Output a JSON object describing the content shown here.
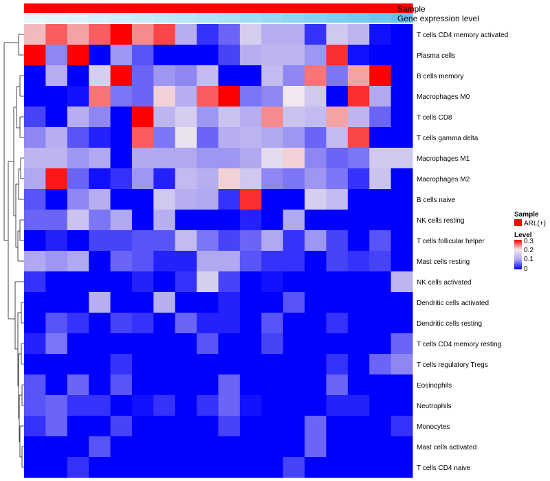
{
  "chart_data": {
    "type": "heatmap",
    "row_labels": [
      "T cells CD4 memory activated",
      "Plasma cells",
      "B cells memory",
      "Macrophages M0",
      "T cells CD8",
      "T cells gamma delta",
      "Macrophages M1",
      "Macrophages M2",
      "B cells naive",
      "NK cells resting",
      "T cells follicular helper",
      "Mast cells resting",
      "NK cells activated",
      "Dendritic cells activated",
      "Dendritic cells resting",
      "T cells CD4 memory resting",
      "T cells regulatory  Tregs",
      "Eosinophils",
      "Neutrophils",
      "Monocytes",
      "Mast cells activated",
      "T cells CD4 naive"
    ],
    "annotation_rows": [
      {
        "label": "Sample",
        "colors": [
          "#ff0000",
          "#ff0000",
          "#ff0000",
          "#ff0000",
          "#ff0000",
          "#ff0000",
          "#ff0000",
          "#ff0000",
          "#ff0000",
          "#ff0000",
          "#ff0000",
          "#ff0000",
          "#ff0000",
          "#ff0000",
          "#ff0000",
          "#ff0000",
          "#ff0000",
          "#ff0000"
        ]
      },
      {
        "label": "Gene expression level",
        "colors": [
          "#e6f7fd",
          "#e0f5fc",
          "#daf3fc",
          "#d4f1fb",
          "#cdeffb",
          "#c6ecfa",
          "#bfe9f9",
          "#b7e6f8",
          "#afe3f7",
          "#a7e0f6",
          "#9fdcf5",
          "#97d8f4",
          "#8fd5f3",
          "#87d1f2",
          "#7fcdf1",
          "#77c9f0",
          "#6fc5ef",
          "#67c1ee"
        ]
      }
    ],
    "values": [
      [
        0.22,
        0.26,
        0.23,
        0.26,
        0.32,
        0.24,
        0.27,
        0.11,
        0.03,
        0.06,
        0.16,
        0.11,
        0.11,
        0.03,
        0.15,
        0.12,
        0.01,
        0.0
      ],
      [
        0.32,
        0.08,
        0.32,
        0.0,
        0.09,
        0.05,
        0.0,
        0.0,
        0.0,
        0.04,
        0.11,
        0.12,
        0.12,
        0.09,
        0.28,
        0.01,
        0.0,
        0.0
      ],
      [
        0.0,
        0.11,
        0.0,
        0.16,
        0.32,
        0.06,
        0.09,
        0.08,
        0.13,
        0.0,
        0.0,
        0.13,
        0.08,
        0.25,
        0.07,
        0.23,
        0.32,
        0.0
      ],
      [
        0.0,
        0.0,
        0.01,
        0.25,
        0.07,
        0.06,
        0.21,
        0.11,
        0.26,
        0.32,
        0.07,
        0.08,
        0.2,
        0.15,
        0.0,
        0.28,
        0.1,
        0.0
      ],
      [
        0.04,
        0.0,
        0.11,
        0.08,
        0.0,
        0.3,
        0.12,
        0.16,
        0.09,
        0.14,
        0.11,
        0.24,
        0.14,
        0.13,
        0.23,
        0.12,
        0.06,
        0.0
      ],
      [
        0.08,
        0.11,
        0.05,
        0.02,
        0.0,
        0.26,
        0.07,
        0.19,
        0.06,
        0.11,
        0.12,
        0.1,
        0.09,
        0.06,
        0.13,
        0.27,
        0.0,
        0.0
      ],
      [
        0.12,
        0.12,
        0.09,
        0.1,
        0.0,
        0.1,
        0.1,
        0.1,
        0.09,
        0.09,
        0.1,
        0.18,
        0.21,
        0.08,
        0.06,
        0.07,
        0.15,
        0.15
      ],
      [
        0.1,
        0.29,
        0.06,
        0.01,
        0.03,
        0.09,
        0.02,
        0.13,
        0.11,
        0.21,
        0.15,
        0.08,
        0.07,
        0.09,
        0.07,
        0.03,
        0.14,
        0.0
      ],
      [
        0.05,
        0.0,
        0.08,
        0.11,
        0.0,
        0.0,
        0.15,
        0.11,
        0.1,
        0.03,
        0.28,
        0.0,
        0.0,
        0.16,
        0.13,
        0.0,
        0.0,
        0.0
      ],
      [
        0.06,
        0.06,
        0.14,
        0.07,
        0.1,
        0.0,
        0.11,
        0.0,
        0.0,
        0.0,
        0.02,
        0.0,
        0.1,
        0.0,
        0.0,
        0.0,
        0.0,
        0.0
      ],
      [
        0.0,
        0.02,
        0.0,
        0.04,
        0.04,
        0.05,
        0.05,
        0.13,
        0.07,
        0.04,
        0.06,
        0.1,
        0.03,
        0.09,
        0.04,
        0.0,
        0.05,
        0.0
      ],
      [
        0.1,
        0.09,
        0.1,
        0.0,
        0.06,
        0.05,
        0.02,
        0.02,
        0.1,
        0.1,
        0.05,
        0.03,
        0.03,
        0.0,
        0.04,
        0.03,
        0.04,
        0.0
      ],
      [
        0.03,
        0.0,
        0.0,
        0.0,
        0.0,
        0.02,
        0.0,
        0.03,
        0.16,
        0.04,
        0.0,
        0.01,
        0.0,
        0.0,
        0.0,
        0.0,
        0.0,
        0.12
      ],
      [
        0.0,
        0.0,
        0.0,
        0.11,
        0.0,
        0.0,
        0.11,
        0.0,
        0.0,
        0.02,
        0.0,
        0.0,
        0.05,
        0.0,
        0.0,
        0.0,
        0.0,
        0.0
      ],
      [
        0.0,
        0.05,
        0.03,
        0.0,
        0.04,
        0.03,
        0.0,
        0.06,
        0.02,
        0.02,
        0.0,
        0.05,
        0.0,
        0.0,
        0.03,
        0.0,
        0.0,
        0.0
      ],
      [
        0.02,
        0.07,
        0.0,
        0.0,
        0.0,
        0.0,
        0.0,
        0.0,
        0.05,
        0.0,
        0.0,
        0.04,
        0.0,
        0.0,
        0.0,
        0.0,
        0.0,
        0.06
      ],
      [
        0.0,
        0.0,
        0.0,
        0.0,
        0.03,
        0.0,
        0.0,
        0.0,
        0.0,
        0.0,
        0.0,
        0.0,
        0.0,
        0.0,
        0.03,
        0.0,
        0.06,
        0.08
      ],
      [
        0.05,
        0.0,
        0.06,
        0.0,
        0.05,
        0.0,
        0.0,
        0.0,
        0.0,
        0.06,
        0.0,
        0.0,
        0.0,
        0.0,
        0.06,
        0.0,
        0.0,
        0.0
      ],
      [
        0.05,
        0.06,
        0.03,
        0.03,
        0.0,
        0.01,
        0.03,
        0.0,
        0.03,
        0.06,
        0.01,
        0.0,
        0.0,
        0.0,
        0.02,
        0.02,
        0.0,
        0.0
      ],
      [
        0.03,
        0.06,
        0.0,
        0.0,
        0.04,
        0.0,
        0.0,
        0.0,
        0.0,
        0.04,
        0.0,
        0.0,
        0.0,
        0.06,
        0.0,
        0.0,
        0.0,
        0.03
      ],
      [
        0.0,
        0.0,
        0.0,
        0.05,
        0.0,
        0.0,
        0.0,
        0.0,
        0.0,
        0.0,
        0.0,
        0.0,
        0.0,
        0.06,
        0.0,
        0.0,
        0.0,
        0.0
      ],
      [
        0.0,
        0.0,
        0.03,
        0.0,
        0.0,
        0.0,
        0.0,
        0.0,
        0.0,
        0.0,
        0.0,
        0.0,
        0.04,
        0.0,
        0.0,
        0.0,
        0.0,
        0.0
      ]
    ],
    "color_scale": {
      "stops": [
        0,
        0.1,
        0.2,
        0.3
      ],
      "colors": [
        "#0000ff",
        "#b0a8f0",
        "#f0e8ee",
        "#ff0000"
      ]
    },
    "range": [
      0,
      0.32
    ],
    "legend": {
      "sample_title": "Sample",
      "sample_item": "ARL(+)",
      "sample_color": "#ff0000",
      "level_title": "Level",
      "ticks": [
        "0.3",
        "0.2",
        "0.1",
        "0"
      ]
    },
    "dendrogram": "rows",
    "legend_position": "right"
  }
}
